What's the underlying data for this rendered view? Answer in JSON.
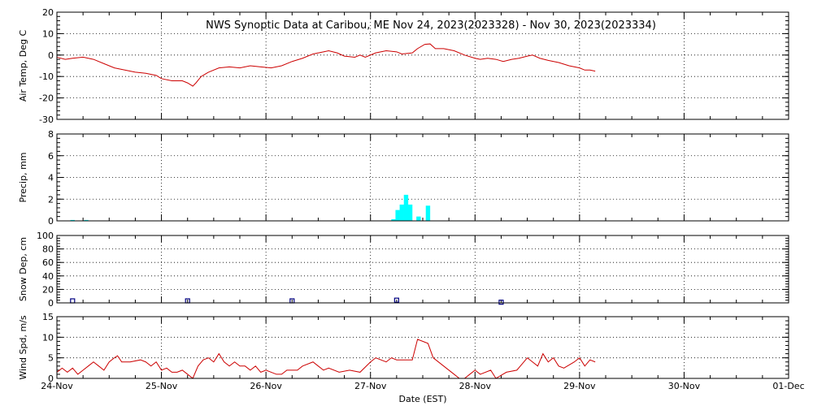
{
  "chart_data": {
    "type": "line",
    "title": "NWS Synoptic Data at Caribou, ME   Nov 24, 2023(2023328) - Nov 30, 2023(2023334)",
    "xlabel": "Date (EST)",
    "x_ticks": [
      "24-Nov",
      "25-Nov",
      "26-Nov",
      "27-Nov",
      "28-Nov",
      "29-Nov",
      "30-Nov",
      "01-Dec"
    ],
    "x_range_days": [
      0,
      7
    ],
    "grid": true,
    "panels": [
      {
        "id": "air-temp",
        "ylabel": "Air Temp, Deg C",
        "type": "line",
        "color": "#cc0000",
        "ylim": [
          -30,
          20
        ],
        "y_ticks": [
          20,
          10,
          0,
          -10,
          -20,
          -30
        ],
        "series": [
          [
            0.0,
            -1
          ],
          [
            0.08,
            -2
          ],
          [
            0.15,
            -1.5
          ],
          [
            0.25,
            -1
          ],
          [
            0.35,
            -2
          ],
          [
            0.45,
            -4
          ],
          [
            0.55,
            -6
          ],
          [
            0.65,
            -7
          ],
          [
            0.75,
            -8
          ],
          [
            0.85,
            -8.5
          ],
          [
            0.95,
            -9.5
          ],
          [
            1.0,
            -11
          ],
          [
            1.1,
            -12
          ],
          [
            1.2,
            -12
          ],
          [
            1.25,
            -13
          ],
          [
            1.3,
            -14.5
          ],
          [
            1.33,
            -13
          ],
          [
            1.38,
            -10
          ],
          [
            1.45,
            -8
          ],
          [
            1.55,
            -6
          ],
          [
            1.65,
            -5.5
          ],
          [
            1.75,
            -6
          ],
          [
            1.85,
            -5
          ],
          [
            1.95,
            -5.5
          ],
          [
            2.05,
            -6
          ],
          [
            2.15,
            -5
          ],
          [
            2.25,
            -3
          ],
          [
            2.35,
            -1.5
          ],
          [
            2.45,
            0.5
          ],
          [
            2.55,
            1.5
          ],
          [
            2.6,
            2
          ],
          [
            2.68,
            1
          ],
          [
            2.75,
            -0.5
          ],
          [
            2.85,
            -1
          ],
          [
            2.9,
            0
          ],
          [
            2.95,
            -1
          ],
          [
            3.05,
            1
          ],
          [
            3.15,
            2
          ],
          [
            3.25,
            1.5
          ],
          [
            3.3,
            0.5
          ],
          [
            3.4,
            1
          ],
          [
            3.45,
            3
          ],
          [
            3.52,
            5
          ],
          [
            3.57,
            5.2
          ],
          [
            3.62,
            3
          ],
          [
            3.7,
            3
          ],
          [
            3.8,
            2
          ],
          [
            3.9,
            0
          ],
          [
            4.0,
            -1.5
          ],
          [
            4.05,
            -2
          ],
          [
            4.12,
            -1.5
          ],
          [
            4.2,
            -2
          ],
          [
            4.27,
            -3
          ],
          [
            4.35,
            -2
          ],
          [
            4.42,
            -1.5
          ],
          [
            4.5,
            -0.5
          ],
          [
            4.55,
            0
          ],
          [
            4.62,
            -1.5
          ],
          [
            4.7,
            -2.5
          ],
          [
            4.8,
            -3.5
          ],
          [
            4.9,
            -5
          ],
          [
            5.0,
            -6
          ],
          [
            5.05,
            -7
          ],
          [
            5.1,
            -7
          ],
          [
            5.15,
            -7.5
          ]
        ]
      },
      {
        "id": "precip",
        "ylabel": "Precip, mm",
        "type": "bar",
        "color": "#00ffff",
        "ylim": [
          0,
          8
        ],
        "y_ticks": [
          8,
          6,
          4,
          2,
          0
        ],
        "bar_width_days": 0.042,
        "bars": [
          [
            0.15,
            0.08
          ],
          [
            0.28,
            0.08
          ],
          [
            3.22,
            0.15
          ],
          [
            3.26,
            1
          ],
          [
            3.3,
            1.5
          ],
          [
            3.34,
            2.4
          ],
          [
            3.38,
            1.5
          ],
          [
            3.46,
            0.4
          ],
          [
            3.55,
            1.4
          ]
        ]
      },
      {
        "id": "snow-depth",
        "ylabel": "Snow Dep, cm",
        "type": "scatter",
        "color": "#000080",
        "ylim": [
          0,
          100
        ],
        "y_ticks": [
          100,
          80,
          60,
          40,
          20,
          0
        ],
        "points": [
          [
            0.15,
            3
          ],
          [
            1.25,
            3
          ],
          [
            2.25,
            3
          ],
          [
            3.25,
            4
          ],
          [
            4.25,
            1
          ]
        ]
      },
      {
        "id": "wind-speed",
        "ylabel": "Wind Spd, m/s",
        "type": "line",
        "color": "#cc0000",
        "ylim": [
          0,
          15
        ],
        "y_ticks": [
          15,
          10,
          5,
          0
        ],
        "series": [
          [
            0.0,
            1.5
          ],
          [
            0.05,
            2.5
          ],
          [
            0.1,
            1.5
          ],
          [
            0.15,
            2.5
          ],
          [
            0.2,
            1
          ],
          [
            0.25,
            2
          ],
          [
            0.3,
            3
          ],
          [
            0.35,
            4
          ],
          [
            0.4,
            3
          ],
          [
            0.45,
            2
          ],
          [
            0.5,
            4
          ],
          [
            0.55,
            5
          ],
          [
            0.58,
            5.5
          ],
          [
            0.62,
            4
          ],
          [
            0.7,
            4
          ],
          [
            0.8,
            4.5
          ],
          [
            0.85,
            4
          ],
          [
            0.9,
            3
          ],
          [
            0.95,
            4
          ],
          [
            1.0,
            2
          ],
          [
            1.05,
            2.5
          ],
          [
            1.1,
            1.5
          ],
          [
            1.15,
            1.5
          ],
          [
            1.2,
            2
          ],
          [
            1.25,
            1
          ],
          [
            1.3,
            0
          ],
          [
            1.35,
            3
          ],
          [
            1.4,
            4.5
          ],
          [
            1.45,
            5
          ],
          [
            1.5,
            4
          ],
          [
            1.55,
            6
          ],
          [
            1.6,
            4
          ],
          [
            1.65,
            3
          ],
          [
            1.7,
            4
          ],
          [
            1.75,
            3
          ],
          [
            1.8,
            3
          ],
          [
            1.85,
            2
          ],
          [
            1.9,
            3
          ],
          [
            1.95,
            1.5
          ],
          [
            2.0,
            2
          ],
          [
            2.1,
            1
          ],
          [
            2.15,
            1
          ],
          [
            2.2,
            2
          ],
          [
            2.25,
            2
          ],
          [
            2.3,
            2
          ],
          [
            2.35,
            3
          ],
          [
            2.45,
            4
          ],
          [
            2.5,
            3
          ],
          [
            2.55,
            2
          ],
          [
            2.6,
            2.5
          ],
          [
            2.7,
            1.5
          ],
          [
            2.8,
            2
          ],
          [
            2.9,
            1.5
          ],
          [
            3.0,
            4
          ],
          [
            3.05,
            5
          ],
          [
            3.15,
            4
          ],
          [
            3.2,
            5
          ],
          [
            3.25,
            4.5
          ],
          [
            3.35,
            4.5
          ],
          [
            3.4,
            4.5
          ],
          [
            3.45,
            9.5
          ],
          [
            3.5,
            9
          ],
          [
            3.55,
            8.5
          ],
          [
            3.6,
            5
          ],
          [
            3.7,
            3
          ],
          [
            3.8,
            1
          ],
          [
            3.85,
            0
          ],
          [
            3.9,
            0
          ],
          [
            3.95,
            1
          ],
          [
            4.0,
            2
          ],
          [
            4.05,
            1
          ],
          [
            4.15,
            2
          ],
          [
            4.2,
            0
          ],
          [
            4.3,
            1.5
          ],
          [
            4.4,
            2
          ],
          [
            4.45,
            3.5
          ],
          [
            4.5,
            5
          ],
          [
            4.55,
            4
          ],
          [
            4.6,
            3
          ],
          [
            4.65,
            6
          ],
          [
            4.7,
            4
          ],
          [
            4.75,
            5
          ],
          [
            4.8,
            3
          ],
          [
            4.85,
            2.5
          ],
          [
            4.95,
            4
          ],
          [
            5.0,
            5
          ],
          [
            5.05,
            3
          ],
          [
            5.1,
            4.5
          ],
          [
            5.15,
            4
          ]
        ]
      }
    ]
  }
}
